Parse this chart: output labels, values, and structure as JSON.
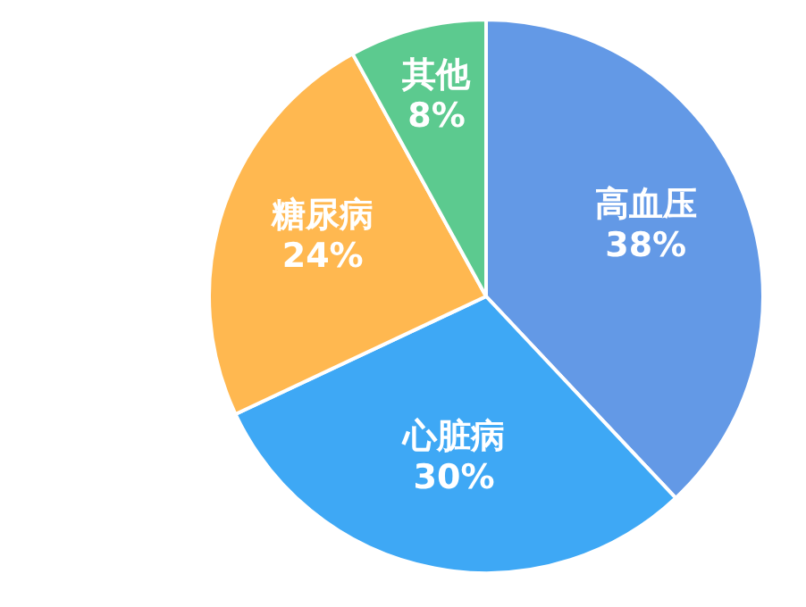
{
  "chart_data": {
    "type": "pie",
    "categories": [
      "高血压",
      "心脏病",
      "糖尿病",
      "其他"
    ],
    "values": [
      38,
      30,
      24,
      8
    ],
    "colors": [
      "#6399e6",
      "#3ea8f5",
      "#ffb850",
      "#5cca8f"
    ],
    "value_labels": [
      "38%",
      "30%",
      "24%",
      "8%"
    ]
  }
}
